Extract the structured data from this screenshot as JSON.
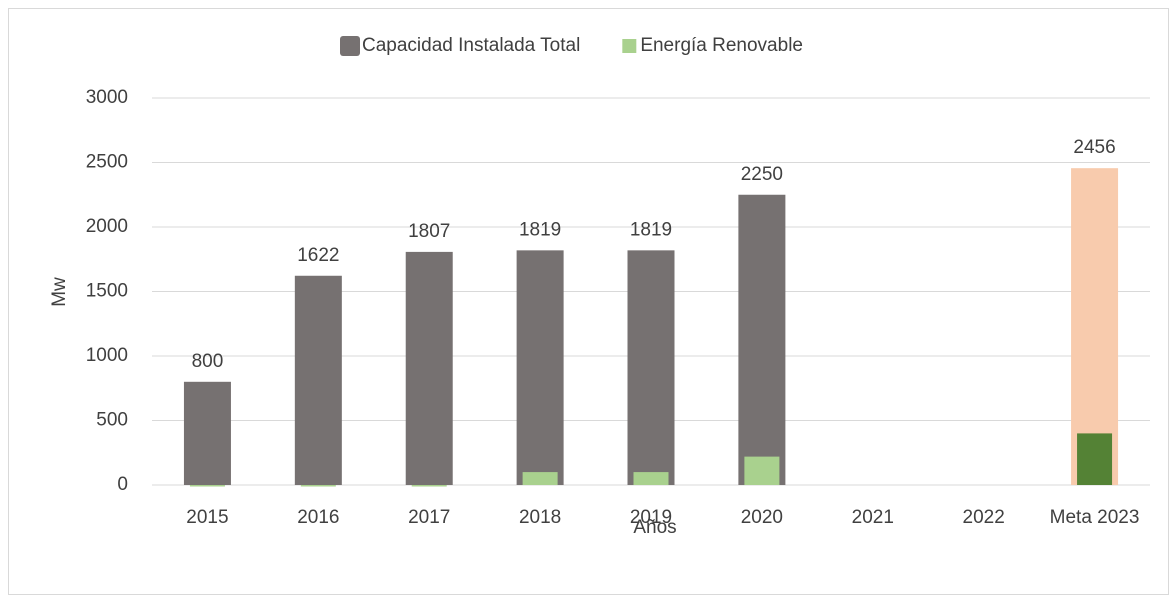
{
  "chart_data": {
    "type": "bar",
    "x_label": "Años",
    "y_label": "Mw",
    "categories": [
      "2015",
      "2016",
      "2017",
      "2018",
      "2019",
      "2020",
      "2021",
      "2022",
      "Meta 2023"
    ],
    "series": [
      {
        "name": "Capacidad Instalada Total",
        "color": "#767171",
        "colors": [
          "#767171",
          "#767171",
          "#767171",
          "#767171",
          "#767171",
          "#767171",
          "#767171",
          "#767171",
          "#f8cbad"
        ],
        "values": [
          800,
          1622,
          1807,
          1819,
          1819,
          2250,
          null,
          null,
          2456
        ],
        "data_labels": true
      },
      {
        "name": "Energía Renovable",
        "color": "#a9d18e",
        "colors": [
          "#a9d18e",
          "#a9d18e",
          "#a9d18e",
          "#a9d18e",
          "#a9d18e",
          "#a9d18e",
          "#a9d18e",
          "#a9d18e",
          "#548235"
        ],
        "values": [
          0,
          0,
          0,
          100,
          100,
          220,
          null,
          null,
          400
        ],
        "data_labels": false
      }
    ],
    "ylim": [
      0,
      3000
    ],
    "yticks": [
      0,
      500,
      1000,
      1500,
      2000,
      2500,
      3000
    ],
    "grid": true,
    "legend": "top"
  }
}
